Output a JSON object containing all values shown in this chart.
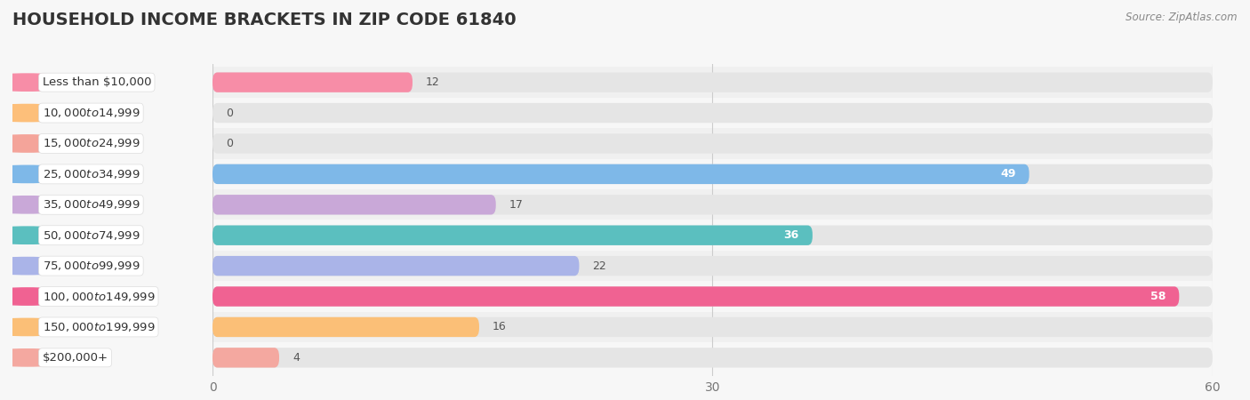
{
  "title": "HOUSEHOLD INCOME BRACKETS IN ZIP CODE 61840",
  "source": "Source: ZipAtlas.com",
  "categories": [
    "Less than $10,000",
    "$10,000 to $14,999",
    "$15,000 to $24,999",
    "$25,000 to $34,999",
    "$35,000 to $49,999",
    "$50,000 to $74,999",
    "$75,000 to $99,999",
    "$100,000 to $149,999",
    "$150,000 to $199,999",
    "$200,000+"
  ],
  "values": [
    12,
    0,
    0,
    49,
    17,
    36,
    22,
    58,
    16,
    4
  ],
  "bar_colors": [
    "#F78DA7",
    "#FDBF7A",
    "#F4A49A",
    "#7EB8E8",
    "#C9A8D8",
    "#5BBFBF",
    "#AAB4E8",
    "#F06292",
    "#FBBF77",
    "#F4A8A0"
  ],
  "xlim_max": 60,
  "xticks": [
    0,
    30,
    60
  ],
  "background_color": "#f7f7f7",
  "bar_bg_color": "#e5e5e5",
  "row_bg_colors": [
    "#f0f0f0",
    "#f7f7f7"
  ],
  "title_fontsize": 14,
  "label_fontsize": 9.5,
  "value_fontsize": 9,
  "source_fontsize": 8.5,
  "bar_height": 0.65,
  "inside_label_threshold": 30
}
